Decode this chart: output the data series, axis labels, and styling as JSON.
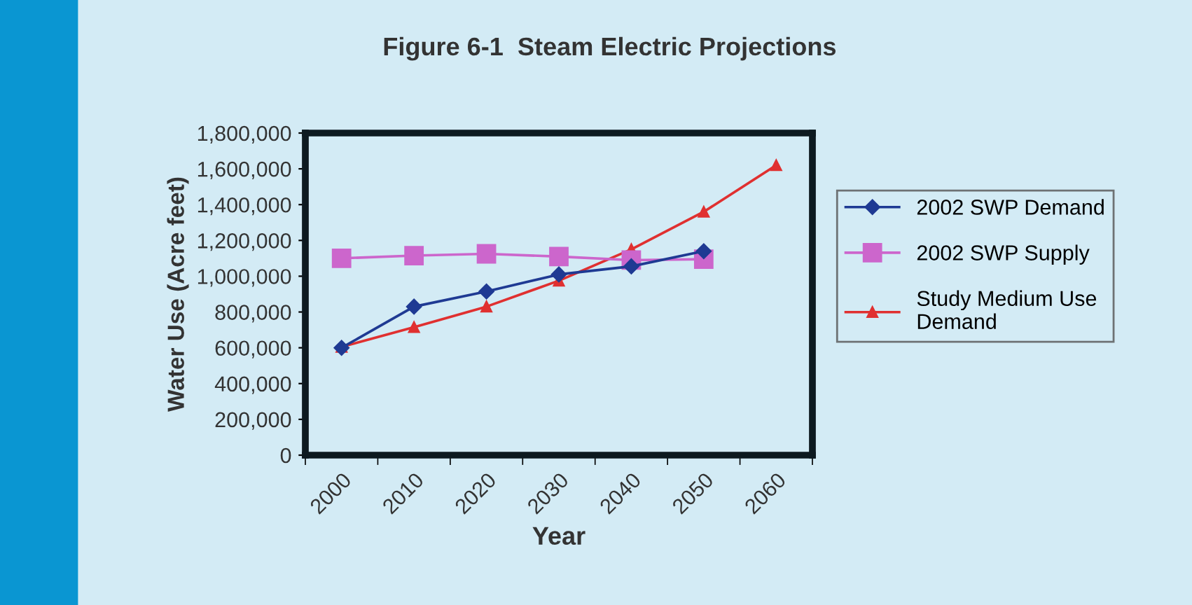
{
  "chart_data": {
    "type": "line",
    "title": "Figure 6-1  Steam Electric Projections",
    "xlabel": "Year",
    "ylabel": "Water Use (Acre feet)",
    "categories": [
      "2000",
      "2010",
      "2020",
      "2030",
      "2040",
      "2050",
      "2060"
    ],
    "series": [
      {
        "name": "2002 SWP Demand",
        "color": "#1f3a93",
        "marker": "diamond",
        "values": [
          600000,
          830000,
          915000,
          1010000,
          1055000,
          1140000,
          null
        ]
      },
      {
        "name": "2002 SWP Supply",
        "color": "#cc66cc",
        "marker": "square",
        "values": [
          1100000,
          1115000,
          1125000,
          1110000,
          1090000,
          1095000,
          null
        ]
      },
      {
        "name": "Study Medium Use\nDemand",
        "color": "#e03030",
        "marker": "triangle",
        "values": [
          605000,
          715000,
          830000,
          975000,
          1150000,
          1360000,
          1620000
        ]
      }
    ],
    "ylim": [
      0,
      1800000
    ],
    "yticks": [
      {
        "value": 0,
        "label": "0"
      },
      {
        "value": 200000,
        "label": "200,000"
      },
      {
        "value": 400000,
        "label": "400,000"
      },
      {
        "value": 600000,
        "label": "600,000"
      },
      {
        "value": 800000,
        "label": "800,000"
      },
      {
        "value": 1000000,
        "label": "1,000,000"
      },
      {
        "value": 1200000,
        "label": "1,200,000"
      },
      {
        "value": 1400000,
        "label": "1,400,000"
      },
      {
        "value": 1600000,
        "label": "1,600,000"
      },
      {
        "value": 1800000,
        "label": "1,800,000"
      }
    ],
    "grid": false,
    "legend": "right",
    "line_style": "solid"
  }
}
